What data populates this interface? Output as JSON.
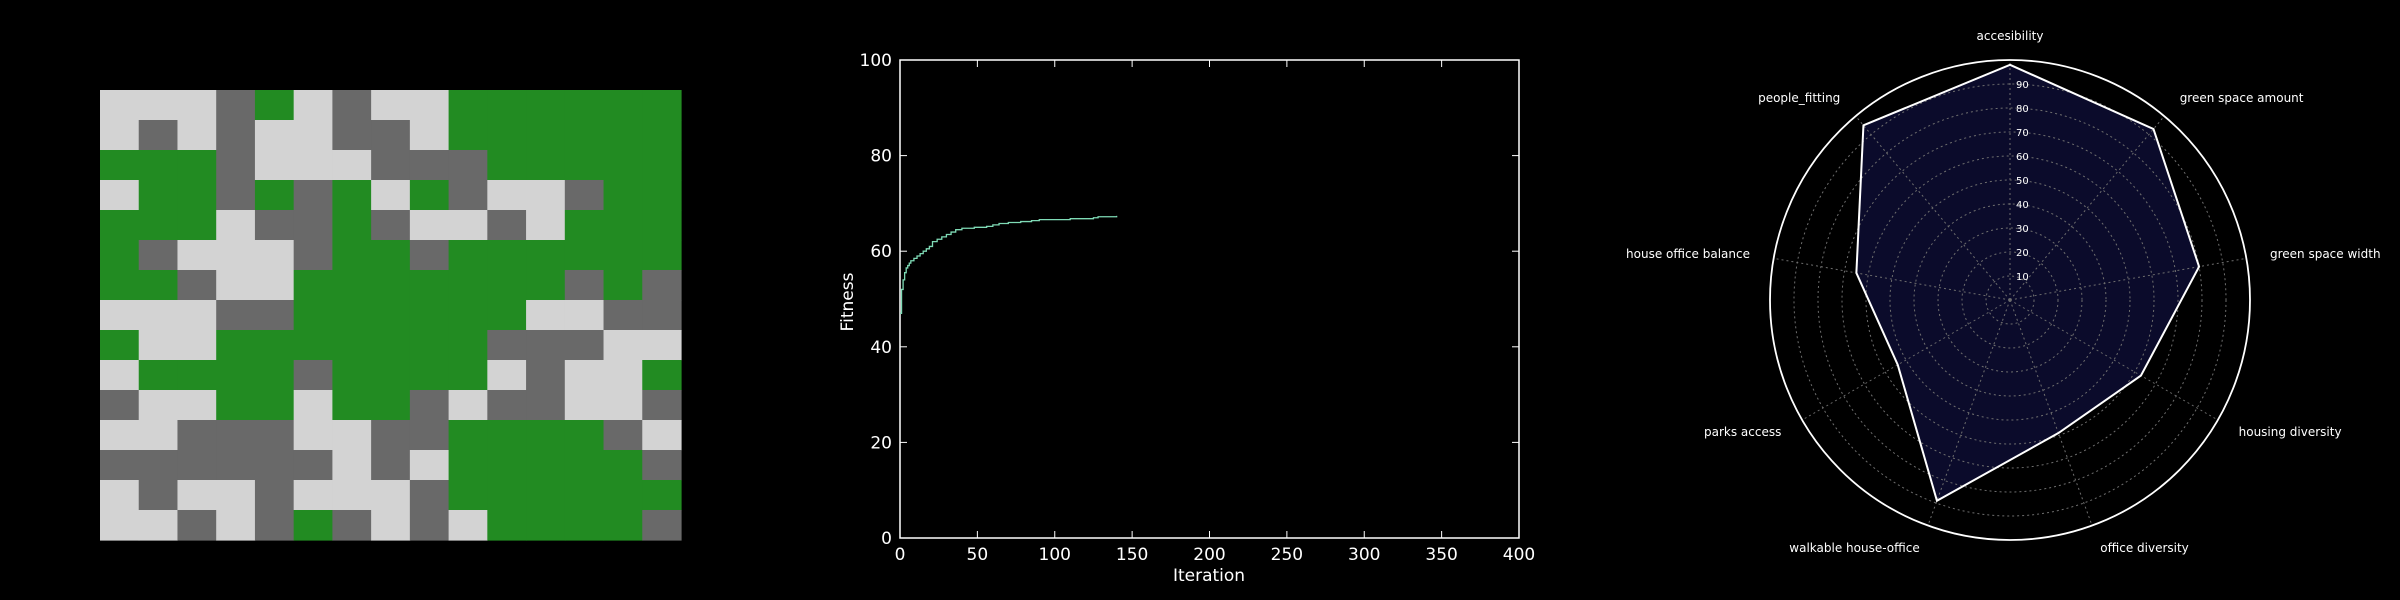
{
  "colors": {
    "background": "#000000",
    "axes": "#ffffff",
    "grid_cell": [
      "#d3d3d3",
      "#696969",
      "#228b22"
    ],
    "fitness_line": "#7fdbb6",
    "radar_fill": "#0b0b2b",
    "radar_line": "#ffffff",
    "radar_grid": "#6e6e6e"
  },
  "chart_data": [
    {
      "type": "heatmap",
      "encoding": "0=light gray, 1=dark gray, 2=green",
      "rows": 15,
      "cols": 15,
      "values": [
        [
          0,
          0,
          0,
          1,
          2,
          0,
          1,
          0,
          0,
          2,
          2,
          2,
          2,
          2,
          2
        ],
        [
          0,
          1,
          0,
          1,
          0,
          0,
          1,
          1,
          0,
          2,
          2,
          2,
          2,
          2,
          2
        ],
        [
          2,
          2,
          2,
          1,
          0,
          0,
          0,
          1,
          1,
          1,
          2,
          2,
          2,
          2,
          2
        ],
        [
          0,
          2,
          2,
          1,
          2,
          1,
          2,
          0,
          2,
          1,
          0,
          0,
          1,
          2,
          2
        ],
        [
          2,
          2,
          2,
          0,
          1,
          1,
          2,
          1,
          0,
          0,
          1,
          0,
          2,
          2,
          2
        ],
        [
          2,
          1,
          0,
          0,
          0,
          1,
          2,
          2,
          1,
          2,
          2,
          2,
          2,
          2,
          2
        ],
        [
          2,
          2,
          1,
          0,
          0,
          2,
          2,
          2,
          2,
          2,
          2,
          2,
          1,
          2,
          1
        ],
        [
          0,
          0,
          0,
          1,
          1,
          2,
          2,
          2,
          2,
          2,
          2,
          0,
          0,
          1,
          1
        ],
        [
          2,
          0,
          0,
          2,
          2,
          2,
          2,
          2,
          2,
          2,
          1,
          1,
          1,
          0,
          0
        ],
        [
          0,
          2,
          2,
          2,
          2,
          1,
          2,
          2,
          2,
          2,
          0,
          1,
          0,
          0,
          2
        ],
        [
          1,
          0,
          0,
          2,
          2,
          0,
          2,
          2,
          1,
          0,
          1,
          1,
          0,
          0,
          1
        ],
        [
          0,
          0,
          1,
          1,
          1,
          0,
          0,
          1,
          1,
          2,
          2,
          2,
          2,
          1,
          0
        ],
        [
          1,
          1,
          1,
          1,
          1,
          1,
          0,
          1,
          0,
          2,
          2,
          2,
          2,
          2,
          1
        ],
        [
          0,
          1,
          0,
          0,
          1,
          0,
          0,
          0,
          1,
          2,
          2,
          2,
          2,
          2,
          2
        ],
        [
          0,
          0,
          1,
          0,
          1,
          2,
          1,
          0,
          1,
          0,
          2,
          2,
          2,
          2,
          1
        ]
      ]
    },
    {
      "type": "line",
      "title": "",
      "xlabel": "Iteration",
      "ylabel": "Fitness",
      "xlim": [
        0,
        400
      ],
      "ylim": [
        0,
        100
      ],
      "xticks": [
        "0",
        "50",
        "100",
        "150",
        "200",
        "250",
        "300",
        "350",
        "400"
      ],
      "yticks": [
        "0",
        "20",
        "40",
        "60",
        "80",
        "100"
      ],
      "grid": false,
      "series": [
        {
          "x": [
            0,
            1,
            2,
            3,
            4,
            5,
            6,
            7,
            9,
            11,
            13,
            15,
            17,
            19,
            21,
            24,
            27,
            30,
            33,
            36,
            40,
            48,
            56,
            60,
            64,
            70,
            78,
            85,
            90,
            110,
            125,
            128,
            140
          ],
          "y": [
            47,
            52,
            54,
            55.5,
            56.5,
            57,
            57.5,
            58,
            58.5,
            59,
            59.5,
            60,
            60.5,
            61,
            62,
            62.5,
            63,
            63.5,
            64,
            64.5,
            64.8,
            65,
            65.2,
            65.5,
            65.8,
            66,
            66.2,
            66.4,
            66.6,
            66.8,
            67,
            67.2,
            67.4
          ]
        }
      ]
    },
    {
      "type": "radar",
      "rmax": 100,
      "rticks": [
        "10",
        "20",
        "30",
        "40",
        "50",
        "60",
        "70",
        "80",
        "90"
      ],
      "categories": [
        "accesibility",
        "green space amount",
        "green space width",
        "housing diversity",
        "office diversity",
        "walkable house-office",
        "parks access",
        "house office balance",
        "people_fitting"
      ],
      "values": [
        98,
        93,
        80,
        63,
        59,
        89,
        54,
        65,
        95
      ]
    }
  ]
}
